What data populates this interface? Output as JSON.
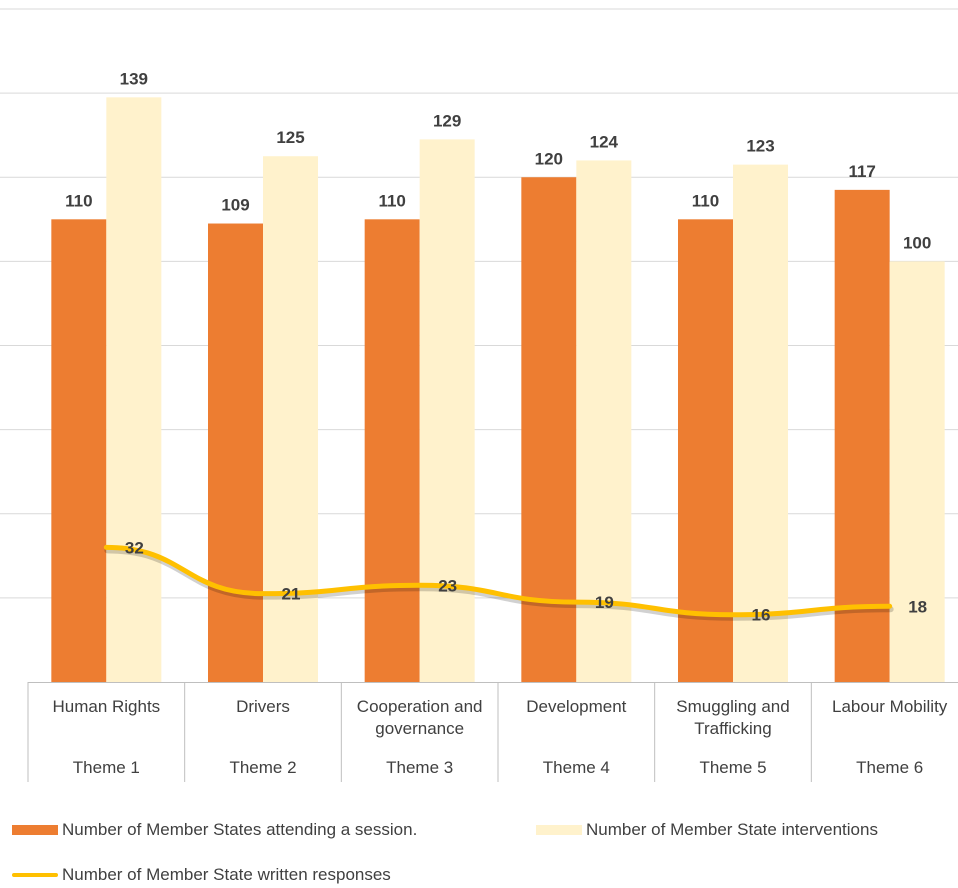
{
  "chart_data": {
    "type": "bar",
    "categories": [
      "Human Rights",
      "Drivers",
      "Cooperation and governance",
      "Development",
      "Smuggling and Trafficking",
      "Labour Mobility"
    ],
    "category_lines": [
      [
        "Human Rights"
      ],
      [
        "Drivers"
      ],
      [
        "Cooperation and",
        "governance"
      ],
      [
        "Development"
      ],
      [
        "Smuggling and",
        "Trafficking"
      ],
      [
        "Labour Mobility"
      ]
    ],
    "themes": [
      "Theme 1",
      "Theme 2",
      "Theme 3",
      "Theme 4",
      "Theme 5",
      "Theme 6"
    ],
    "series": [
      {
        "name": "Number of Member States attending a session.",
        "kind": "bar",
        "color": "#ED7D31",
        "values": [
          110,
          109,
          110,
          120,
          110,
          117
        ]
      },
      {
        "name": "Number of Member State interventions",
        "kind": "bar",
        "color": "#FFF2CC",
        "values": [
          139,
          125,
          129,
          124,
          123,
          100
        ]
      },
      {
        "name": "Number of Member State written responses",
        "kind": "line",
        "color": "#FFC000",
        "values": [
          32,
          21,
          23,
          19,
          16,
          18
        ]
      }
    ],
    "ylim": [
      0,
      160
    ],
    "grid": true,
    "legend_position": "bottom",
    "title": "",
    "xlabel": "",
    "ylabel": ""
  }
}
